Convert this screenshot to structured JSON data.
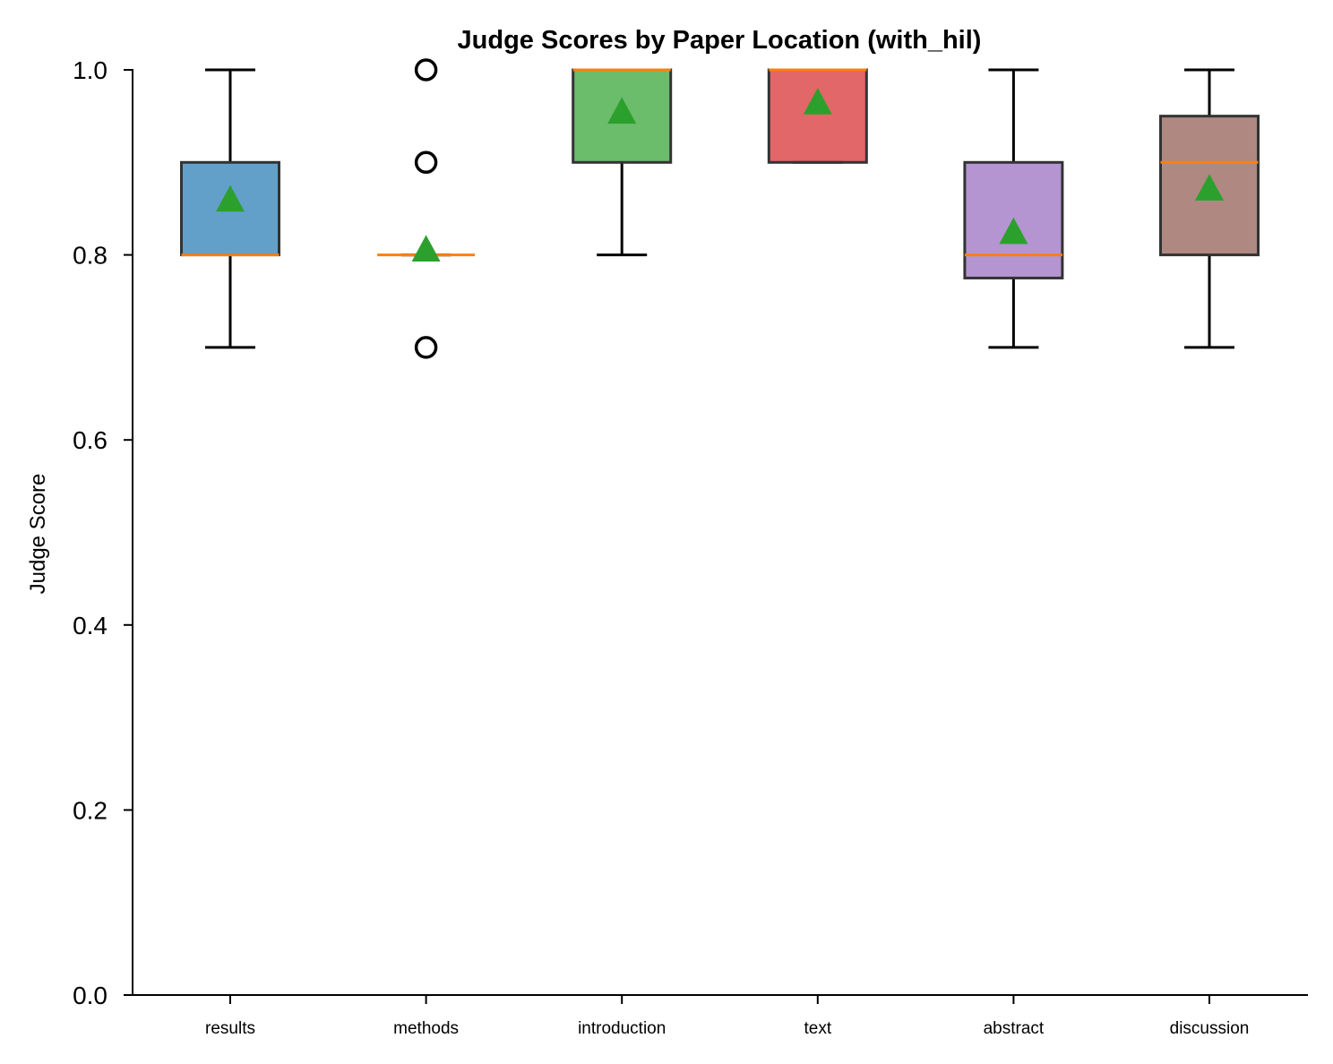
{
  "chart_data": {
    "type": "box",
    "title": "Judge Scores by Paper Location (with_hil)",
    "ylabel": "Judge Score",
    "xlabel": "",
    "ylim": [
      0.0,
      1.0
    ],
    "yticks": [
      "0.0",
      "0.2",
      "0.4",
      "0.6",
      "0.8",
      "1.0"
    ],
    "grid": false,
    "categories": [
      "results",
      "methods",
      "introduction",
      "text",
      "abstract",
      "discussion"
    ],
    "boxes": [
      {
        "category": "results",
        "whisker_low": 0.7,
        "q1": 0.8,
        "median": 0.8,
        "q3": 0.9,
        "whisker_high": 1.0,
        "mean": 0.86,
        "outliers": [],
        "color": "#1f77b4"
      },
      {
        "category": "methods",
        "whisker_low": 0.8,
        "q1": 0.8,
        "median": 0.8,
        "q3": 0.8,
        "whisker_high": 0.8,
        "mean": 0.806,
        "outliers": [
          0.7,
          0.9,
          1.0
        ],
        "color": "#ff7f0e"
      },
      {
        "category": "introduction",
        "whisker_low": 0.8,
        "q1": 0.9,
        "median": 1.0,
        "q3": 1.0,
        "whisker_high": 1.0,
        "mean": 0.955,
        "outliers": [],
        "color": "#2ca02c"
      },
      {
        "category": "text",
        "whisker_low": 0.9,
        "q1": 0.9,
        "median": 1.0,
        "q3": 1.0,
        "whisker_high": 1.0,
        "mean": 0.965,
        "outliers": [],
        "color": "#d62728"
      },
      {
        "category": "abstract",
        "whisker_low": 0.7,
        "q1": 0.775,
        "median": 0.8,
        "q3": 0.9,
        "whisker_high": 1.0,
        "mean": 0.825,
        "outliers": [],
        "color": "#9467bd"
      },
      {
        "category": "discussion",
        "whisker_low": 0.7,
        "q1": 0.8,
        "median": 0.9,
        "q3": 0.95,
        "whisker_high": 1.0,
        "mean": 0.872,
        "outliers": [],
        "color": "#8c564b"
      }
    ],
    "median_color": "#ff7f0e",
    "mean_marker_color": "#2ca02c"
  }
}
